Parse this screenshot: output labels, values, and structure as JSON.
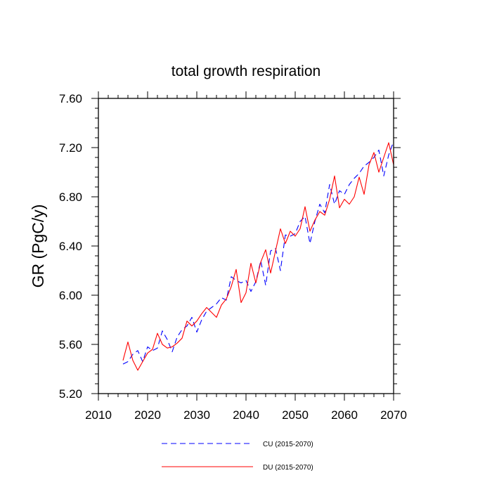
{
  "chart_data": {
    "type": "line",
    "title": "total growth respiration",
    "xlabel": "",
    "ylabel": "GR  (PgC/y)",
    "xlim": [
      2010,
      2070
    ],
    "ylim": [
      5.2,
      7.6
    ],
    "xticks": [
      2010,
      2020,
      2030,
      2040,
      2050,
      2060,
      2070
    ],
    "xtick_labels": [
      "2010",
      "2020",
      "2030",
      "2040",
      "2050",
      "2060",
      "2070"
    ],
    "yticks": [
      5.2,
      5.6,
      6.0,
      6.4,
      6.8,
      7.2,
      7.6
    ],
    "ytick_labels": [
      "5.20",
      "5.60",
      "6.00",
      "6.40",
      "6.80",
      "7.20",
      "7.60"
    ],
    "x": [
      2015,
      2016,
      2017,
      2018,
      2019,
      2020,
      2021,
      2022,
      2023,
      2024,
      2025,
      2026,
      2027,
      2028,
      2029,
      2030,
      2031,
      2032,
      2033,
      2034,
      2035,
      2036,
      2037,
      2038,
      2039,
      2040,
      2041,
      2042,
      2043,
      2044,
      2045,
      2046,
      2047,
      2048,
      2049,
      2050,
      2051,
      2052,
      2053,
      2054,
      2055,
      2056,
      2057,
      2058,
      2059,
      2060,
      2061,
      2062,
      2063,
      2064,
      2065,
      2066,
      2067,
      2068,
      2069,
      2070
    ],
    "series": [
      {
        "name": "CU (2015-2070)",
        "color": "#0000ff",
        "dash": "dashed",
        "values": [
          5.44,
          5.46,
          5.52,
          5.55,
          5.46,
          5.58,
          5.55,
          5.57,
          5.71,
          5.64,
          5.54,
          5.66,
          5.72,
          5.75,
          5.82,
          5.7,
          5.8,
          5.87,
          5.9,
          5.93,
          5.98,
          5.96,
          6.15,
          6.12,
          6.1,
          6.12,
          6.03,
          6.11,
          6.28,
          6.08,
          6.36,
          6.38,
          6.2,
          6.49,
          6.48,
          6.5,
          6.6,
          6.64,
          6.42,
          6.6,
          6.74,
          6.67,
          6.9,
          6.74,
          6.85,
          6.82,
          6.9,
          6.95,
          6.99,
          7.05,
          7.08,
          7.12,
          7.18,
          6.97,
          7.14,
          7.25
        ]
      },
      {
        "name": "DU (2015-2070)",
        "color": "#ff0000",
        "dash": "solid",
        "values": [
          5.47,
          5.62,
          5.47,
          5.39,
          5.46,
          5.53,
          5.56,
          5.69,
          5.6,
          5.57,
          5.58,
          5.61,
          5.65,
          5.79,
          5.75,
          5.79,
          5.85,
          5.9,
          5.86,
          5.82,
          5.92,
          5.97,
          6.07,
          6.21,
          5.94,
          6.02,
          6.26,
          6.1,
          6.27,
          6.37,
          6.18,
          6.36,
          6.54,
          6.42,
          6.52,
          6.48,
          6.54,
          6.72,
          6.52,
          6.61,
          6.68,
          6.65,
          6.78,
          6.97,
          6.71,
          6.78,
          6.74,
          6.8,
          6.96,
          6.82,
          7.06,
          7.16,
          7.0,
          7.12,
          7.24,
          7.06
        ]
      }
    ]
  }
}
